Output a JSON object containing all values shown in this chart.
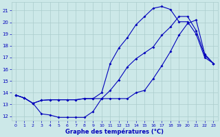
{
  "xlabel": "Graphe des températures (°C)",
  "bg_color": "#cce8e8",
  "grid_color": "#aacccc",
  "line_color": "#0000bb",
  "x_ticks": [
    0,
    1,
    2,
    3,
    4,
    5,
    6,
    7,
    8,
    9,
    10,
    11,
    12,
    13,
    14,
    15,
    16,
    17,
    18,
    19,
    20,
    21,
    22,
    23
  ],
  "y_ticks": [
    12,
    13,
    14,
    15,
    16,
    17,
    18,
    19,
    20,
    21
  ],
  "ylim": [
    11.6,
    21.7
  ],
  "xlim": [
    -0.5,
    23.5
  ],
  "line1_x": [
    0,
    1,
    2,
    3,
    4,
    5,
    6,
    7,
    8,
    9,
    10,
    11,
    12,
    13,
    14,
    15,
    16,
    17,
    18,
    19,
    20,
    21,
    22,
    23
  ],
  "line1_y": [
    13.8,
    13.55,
    13.1,
    13.35,
    13.4,
    13.4,
    13.4,
    13.4,
    13.5,
    13.5,
    14.0,
    16.5,
    17.8,
    18.7,
    19.8,
    20.5,
    21.2,
    21.35,
    21.1,
    20.05,
    20.05,
    19.0,
    17.0,
    16.5
  ],
  "line2_x": [
    0,
    1,
    2,
    3,
    4,
    5,
    6,
    7,
    8,
    9,
    10,
    11,
    12,
    13,
    14,
    15,
    16,
    17,
    18,
    19,
    20,
    21,
    22,
    23
  ],
  "line2_y": [
    13.8,
    13.55,
    13.1,
    12.2,
    12.1,
    11.9,
    11.9,
    11.9,
    11.9,
    12.4,
    13.5,
    14.2,
    15.1,
    16.2,
    16.9,
    17.4,
    17.9,
    18.9,
    19.6,
    20.5,
    20.5,
    19.3,
    17.2,
    16.5
  ],
  "line3_x": [
    0,
    1,
    2,
    3,
    4,
    5,
    6,
    7,
    8,
    9,
    10,
    11,
    12,
    13,
    14,
    15,
    16,
    17,
    18,
    19,
    20,
    21,
    22,
    23
  ],
  "line3_y": [
    13.8,
    13.55,
    13.1,
    13.35,
    13.4,
    13.4,
    13.4,
    13.4,
    13.5,
    13.5,
    13.5,
    13.5,
    13.5,
    13.5,
    14.0,
    14.2,
    15.2,
    16.3,
    17.5,
    18.9,
    19.9,
    20.2,
    17.3,
    16.5
  ]
}
